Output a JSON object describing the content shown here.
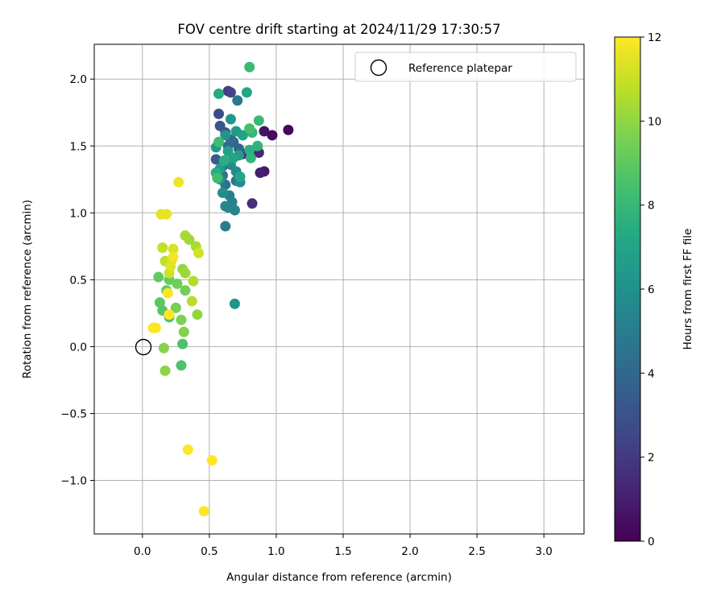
{
  "chart_data": {
    "type": "scatter",
    "title": "FOV centre drift starting at 2024/11/29 17:30:57",
    "xlabel": "Angular distance from reference (arcmin)",
    "ylabel": "Rotation from reference (arcmin)",
    "xlim": [
      -0.36,
      3.3
    ],
    "ylim": [
      -1.4,
      2.26
    ],
    "xticks": [
      0.0,
      0.5,
      1.0,
      1.5,
      2.0,
      2.5,
      3.0
    ],
    "xtick_labels": [
      "0.0",
      "0.5",
      "1.0",
      "1.5",
      "2.0",
      "2.5",
      "3.0"
    ],
    "yticks": [
      -1.0,
      -0.5,
      0.0,
      0.5,
      1.0,
      1.5,
      2.0
    ],
    "ytick_labels": [
      "−1.0",
      "−0.5",
      "0.0",
      "0.5",
      "1.0",
      "1.5",
      "2.0"
    ],
    "grid": true,
    "legend": {
      "placement": "upper right",
      "entries": [
        "Reference platepar"
      ]
    },
    "reference": {
      "x": 0.0,
      "y": 0.0,
      "label": "Reference platepar"
    },
    "colorbar": {
      "label": "Hours from first FF file",
      "range": [
        0,
        12
      ],
      "ticks": [
        0,
        2,
        4,
        6,
        8,
        10,
        12
      ],
      "tick_labels": [
        "0",
        "2",
        "4",
        "6",
        "8",
        "10",
        "12"
      ],
      "colormap": "viridis"
    },
    "points": [
      [
        1.09,
        1.62,
        0.2
      ],
      [
        0.97,
        1.58,
        0.4
      ],
      [
        0.91,
        1.61,
        0.6
      ],
      [
        0.91,
        1.31,
        0.8
      ],
      [
        0.88,
        1.3,
        1.0
      ],
      [
        0.87,
        1.45,
        1.3
      ],
      [
        0.82,
        1.07,
        1.6
      ],
      [
        0.75,
        1.44,
        1.9
      ],
      [
        0.64,
        1.91,
        2.2
      ],
      [
        0.66,
        1.9,
        2.4
      ],
      [
        0.57,
        1.74,
        2.7
      ],
      [
        0.62,
        1.6,
        3.0
      ],
      [
        0.58,
        1.65,
        3.2
      ],
      [
        0.55,
        1.4,
        3.4
      ],
      [
        0.6,
        1.35,
        3.6
      ],
      [
        0.68,
        1.53,
        3.8
      ],
      [
        0.72,
        1.48,
        4.0
      ],
      [
        0.66,
        1.55,
        4.2
      ],
      [
        0.64,
        1.5,
        4.3
      ],
      [
        0.6,
        1.28,
        4.4
      ],
      [
        0.62,
        1.21,
        4.5
      ],
      [
        0.7,
        1.24,
        4.6
      ],
      [
        0.71,
        1.84,
        4.8
      ],
      [
        0.62,
        0.9,
        5.0
      ],
      [
        0.65,
        1.13,
        5.1
      ],
      [
        0.67,
        1.08,
        5.2
      ],
      [
        0.64,
        1.04,
        5.3
      ],
      [
        0.69,
        1.02,
        5.4
      ],
      [
        0.62,
        1.05,
        5.5
      ],
      [
        0.66,
        1.36,
        5.6
      ],
      [
        0.7,
        1.31,
        5.7
      ],
      [
        0.73,
        1.23,
        5.8
      ],
      [
        0.6,
        1.15,
        5.9
      ],
      [
        0.58,
        1.25,
        6.0
      ],
      [
        0.69,
        0.32,
        6.1
      ],
      [
        0.62,
        1.58,
        6.2
      ],
      [
        0.66,
        1.7,
        6.3
      ],
      [
        0.7,
        1.61,
        6.4
      ],
      [
        0.55,
        1.49,
        6.5
      ],
      [
        0.72,
        1.43,
        6.6
      ],
      [
        0.58,
        1.33,
        6.7
      ],
      [
        0.64,
        1.46,
        6.8
      ],
      [
        0.75,
        1.58,
        6.9
      ],
      [
        0.68,
        1.41,
        7.0
      ],
      [
        0.78,
        1.9,
        7.1
      ],
      [
        0.73,
        1.27,
        7.2
      ],
      [
        0.57,
        1.89,
        7.3
      ],
      [
        0.55,
        1.3,
        7.4
      ],
      [
        0.61,
        1.39,
        7.5
      ],
      [
        0.8,
        1.47,
        7.6
      ],
      [
        0.86,
        1.5,
        7.7
      ],
      [
        0.81,
        1.41,
        7.8
      ],
      [
        0.82,
        1.6,
        7.9
      ],
      [
        0.87,
        1.69,
        8.0
      ],
      [
        0.8,
        2.09,
        8.1
      ],
      [
        0.57,
        1.53,
        8.2
      ],
      [
        0.56,
        1.26,
        8.3
      ],
      [
        0.8,
        1.63,
        8.4
      ],
      [
        0.3,
        0.02,
        8.5
      ],
      [
        0.29,
        -0.14,
        8.6
      ],
      [
        0.2,
        0.22,
        8.7
      ],
      [
        0.15,
        0.27,
        8.8
      ],
      [
        0.13,
        0.33,
        8.9
      ],
      [
        0.18,
        0.42,
        9.0
      ],
      [
        0.12,
        0.52,
        9.1
      ],
      [
        0.2,
        0.5,
        9.2
      ],
      [
        0.26,
        0.47,
        9.3
      ],
      [
        0.32,
        0.42,
        9.4
      ],
      [
        0.25,
        0.29,
        9.5
      ],
      [
        0.29,
        0.2,
        9.6
      ],
      [
        0.31,
        0.11,
        9.7
      ],
      [
        0.16,
        -0.01,
        9.8
      ],
      [
        0.17,
        -0.18,
        9.9
      ],
      [
        0.41,
        0.24,
        10.0
      ],
      [
        0.3,
        0.58,
        10.1
      ],
      [
        0.32,
        0.55,
        10.2
      ],
      [
        0.35,
        0.8,
        10.3
      ],
      [
        0.32,
        0.83,
        10.4
      ],
      [
        0.4,
        0.75,
        10.5
      ],
      [
        0.38,
        0.49,
        10.6
      ],
      [
        0.37,
        0.34,
        10.7
      ],
      [
        0.17,
        0.64,
        10.8
      ],
      [
        0.15,
        0.74,
        10.9
      ],
      [
        0.22,
        0.65,
        11.0
      ],
      [
        0.2,
        0.55,
        11.1
      ],
      [
        0.42,
        0.7,
        11.2
      ],
      [
        0.23,
        0.73,
        11.3
      ],
      [
        0.21,
        0.6,
        11.4
      ],
      [
        0.14,
        0.99,
        11.5
      ],
      [
        0.18,
        0.99,
        11.6
      ],
      [
        0.27,
        1.23,
        11.7
      ],
      [
        0.23,
        0.67,
        11.8
      ],
      [
        0.19,
        0.4,
        11.9
      ],
      [
        0.1,
        0.14,
        11.95
      ],
      [
        0.08,
        0.14,
        12.0
      ],
      [
        0.2,
        0.24,
        12.0
      ],
      [
        0.34,
        -0.77,
        12.0
      ],
      [
        0.52,
        -0.85,
        12.0
      ],
      [
        0.46,
        -1.23,
        12.0
      ]
    ]
  }
}
